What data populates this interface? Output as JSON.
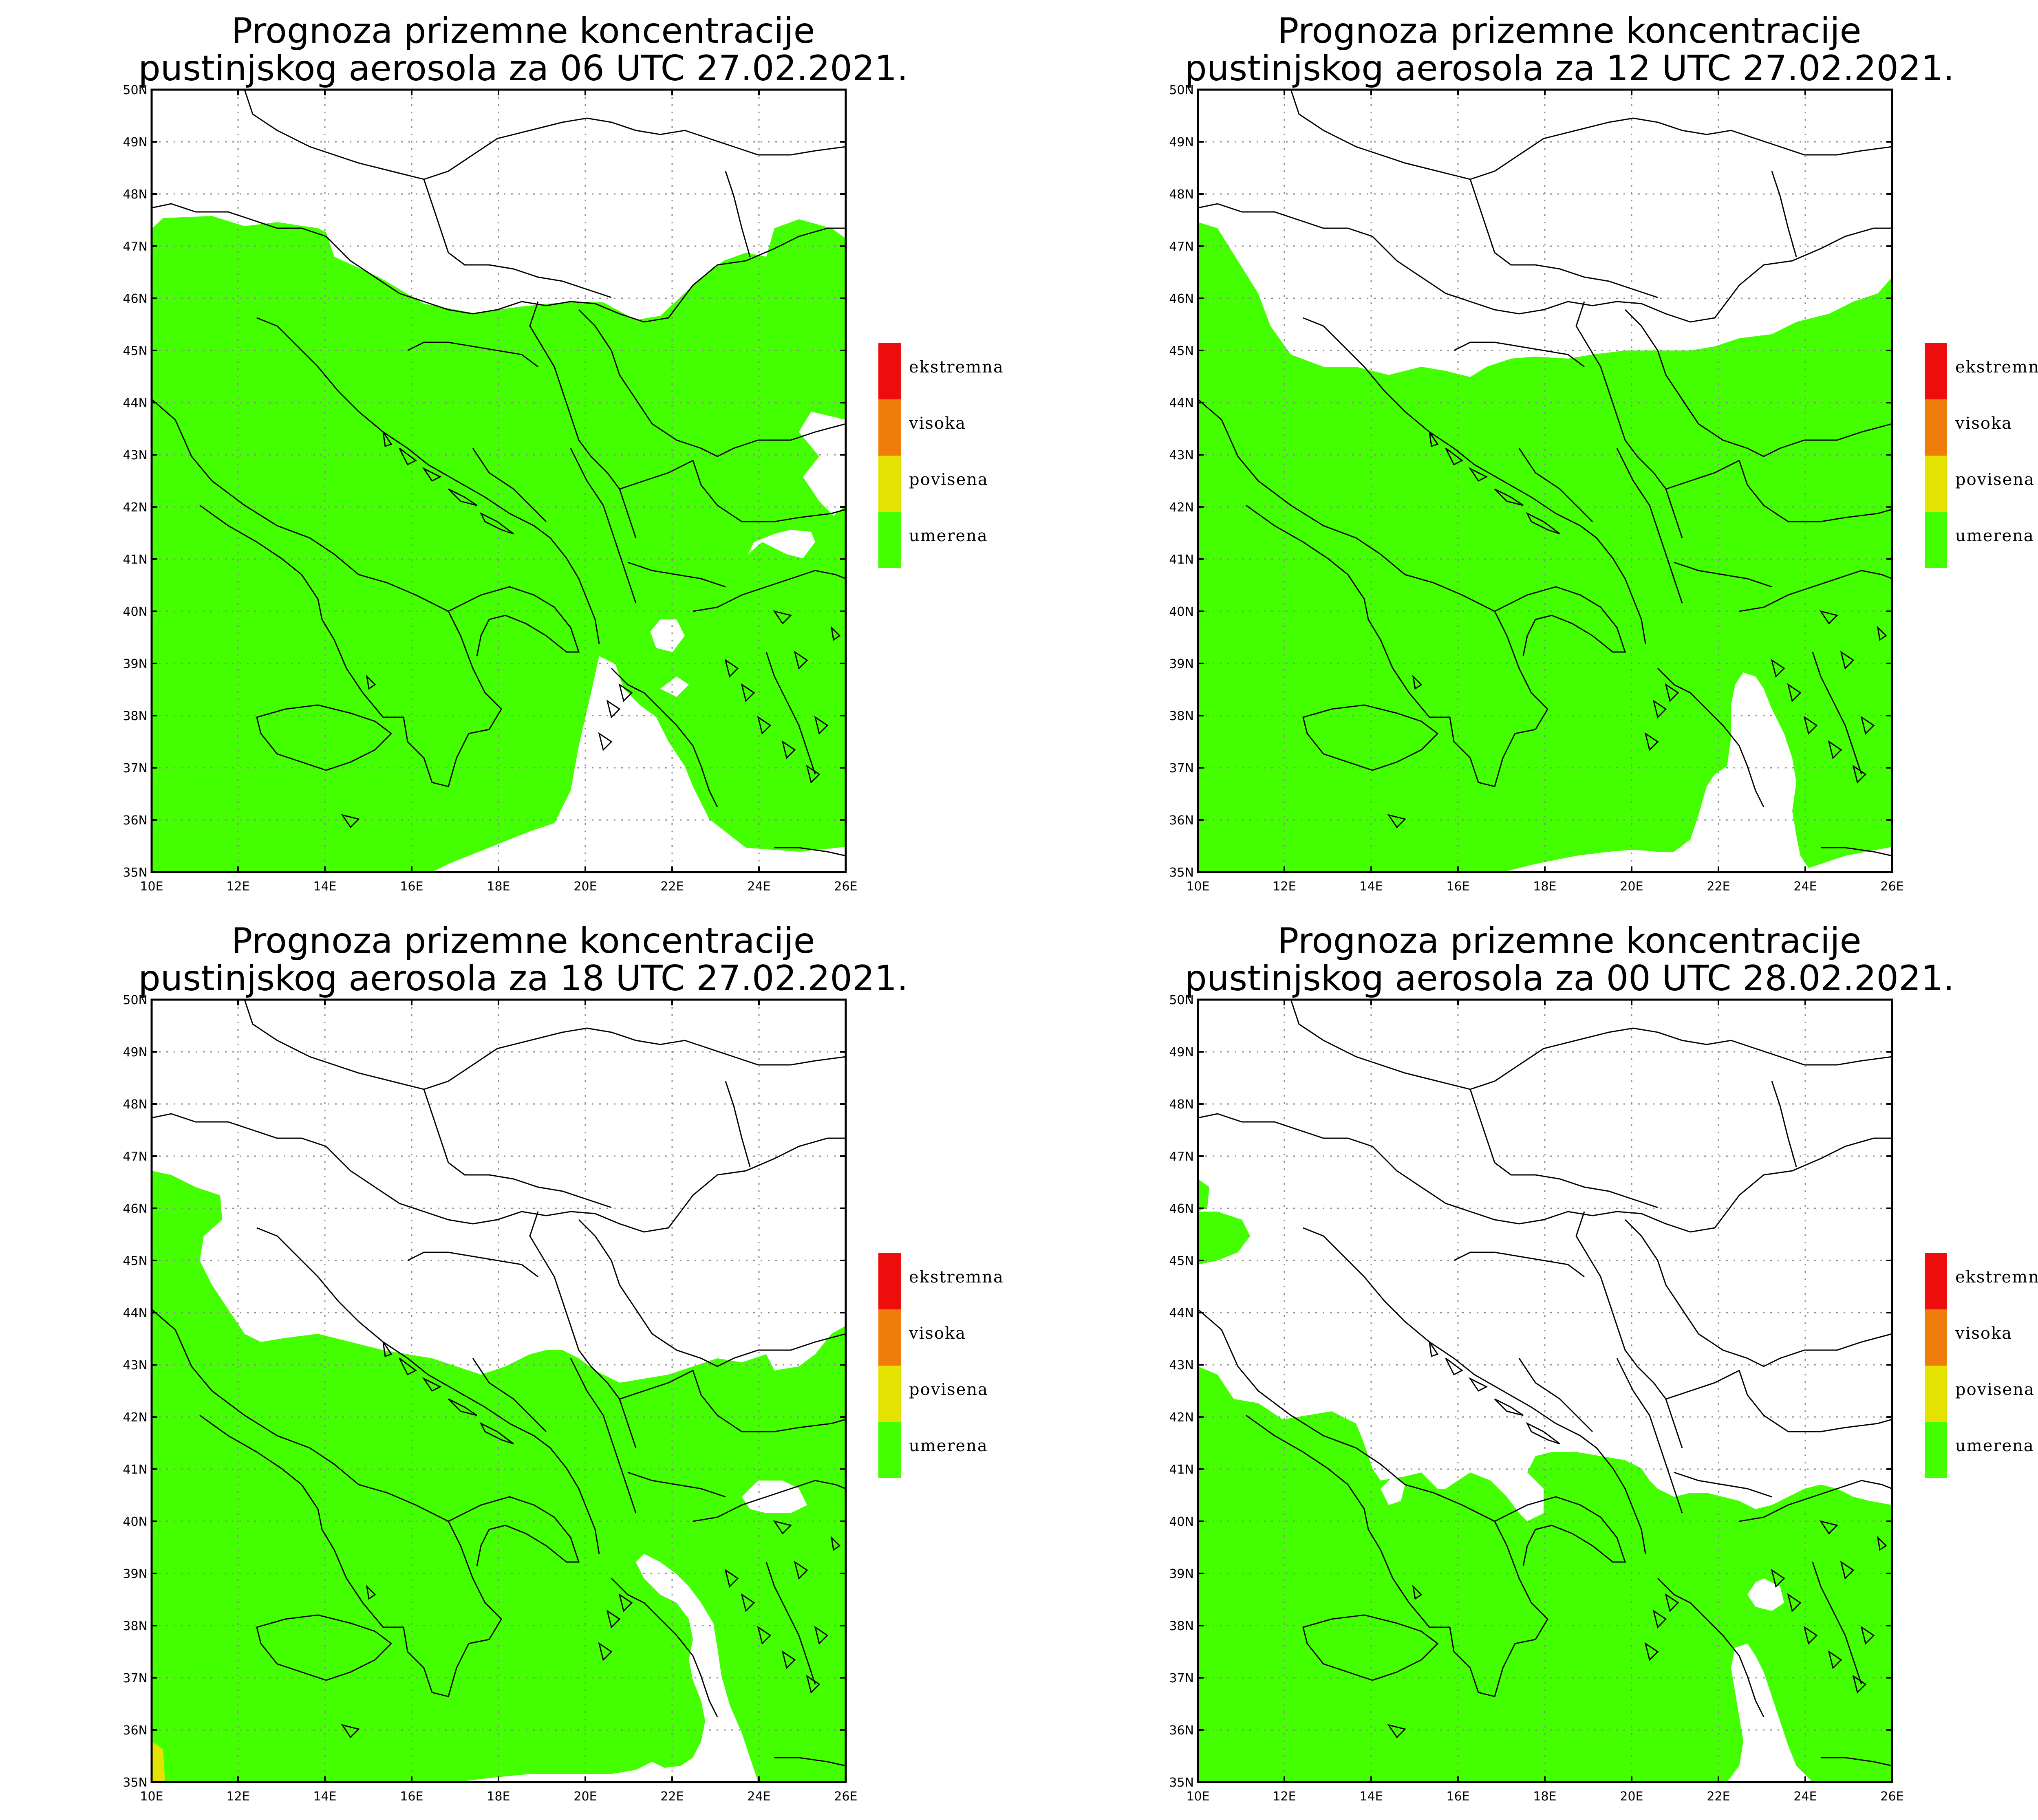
{
  "colors": {
    "umerena": "#43ff00",
    "povisena": "#e4e200",
    "visoka": "#ef7d0c",
    "ekstremna": "#ee0d0d",
    "border": "#000000",
    "grid": "#8a8a8a"
  },
  "axes": {
    "lon_labels": [
      "10E",
      "12E",
      "14E",
      "16E",
      "18E",
      "20E",
      "22E",
      "24E",
      "26E"
    ],
    "lat_labels": [
      "35N",
      "36N",
      "37N",
      "38N",
      "39N",
      "40N",
      "41N",
      "42N",
      "43N",
      "44N",
      "45N",
      "46N",
      "47N",
      "48N",
      "49N",
      "50N"
    ],
    "lon_range": [
      10,
      26
    ],
    "lat_range": [
      35,
      50
    ],
    "grid": true
  },
  "legend": [
    {
      "label": "ekstremna",
      "color": "#ee0d0d"
    },
    {
      "label": "visoka",
      "color": "#ef7d0c"
    },
    {
      "label": "povisena",
      "color": "#e4e200"
    },
    {
      "label": "umerena",
      "color": "#43ff00"
    }
  ],
  "panels": [
    {
      "title_line1": "Prognoza prizemne koncentracije",
      "title_line2": "pustinjskog aerosola za 06 UTC 27.02.2021."
    },
    {
      "title_line1": "Prognoza prizemne koncentracije",
      "title_line2": "pustinjskog aerosola za 12 UTC 27.02.2021."
    },
    {
      "title_line1": "Prognoza prizemne koncentracije",
      "title_line2": "pustinjskog aerosola za 18 UTC 27.02.2021."
    },
    {
      "title_line1": "Prognoza prizemne koncentracije",
      "title_line2": "pustinjskog aerosola za 00 UTC 28.02.2021."
    }
  ]
}
